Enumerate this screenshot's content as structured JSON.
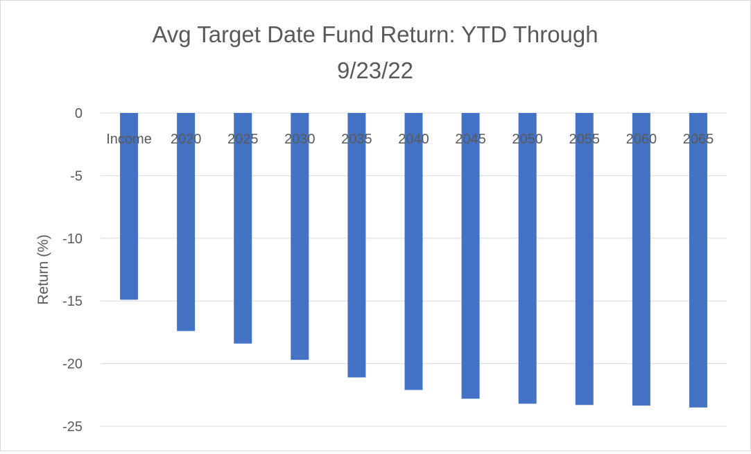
{
  "chart_data": {
    "type": "bar",
    "title_lines": [
      "Avg Target Date Fund Return: YTD Through",
      "9/23/22"
    ],
    "xlabel": "",
    "ylabel": "Return (%)",
    "categories": [
      "Income",
      "2020",
      "2025",
      "2030",
      "2035",
      "2040",
      "2045",
      "2050",
      "2055",
      "2060",
      "2065"
    ],
    "values": [
      -14.9,
      -17.4,
      -18.4,
      -19.7,
      -21.1,
      -22.1,
      -22.8,
      -23.2,
      -23.3,
      -23.35,
      -23.5
    ],
    "ylim": [
      -25,
      0
    ],
    "yticks": [
      0,
      -5,
      -10,
      -15,
      -20,
      -25
    ],
    "grid": true,
    "legend": "none",
    "colors": {
      "bar": "#4472c4",
      "grid": "#d9d9d9",
      "text": "#595959"
    }
  }
}
